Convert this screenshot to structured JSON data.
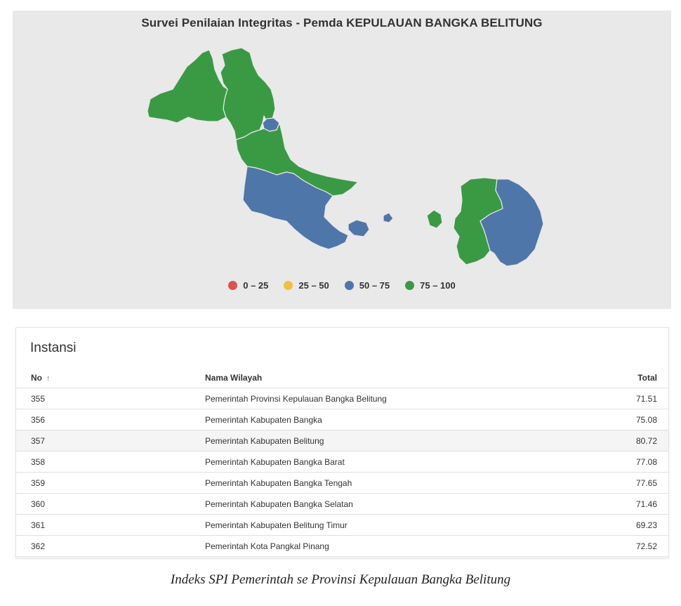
{
  "map": {
    "title": "Survei Penilaian Integritas - Pemda KEPULAUAN BANGKA BELITUNG",
    "colors": {
      "r0_25": "#d9534f",
      "r25_50": "#f0c040",
      "r50_75": "#4f76a8",
      "r75_100": "#3a9a44"
    },
    "legend": [
      {
        "label": "0 – 25",
        "color": "#d9534f"
      },
      {
        "label": "25 – 50",
        "color": "#f0c040"
      },
      {
        "label": "50 – 75",
        "color": "#4f76a8"
      },
      {
        "label": "75 – 100",
        "color": "#3a9a44"
      }
    ],
    "regions": [
      {
        "name": "Kabupaten Bangka Barat",
        "score": 77.08,
        "class": "75 – 100"
      },
      {
        "name": "Kabupaten Bangka",
        "score": 75.08,
        "class": "75 – 100"
      },
      {
        "name": "Kota Pangkal Pinang",
        "score": 72.52,
        "class": "50 – 75"
      },
      {
        "name": "Kabupaten Bangka Tengah",
        "score": 77.65,
        "class": "75 – 100"
      },
      {
        "name": "Kabupaten Bangka Selatan",
        "score": 71.46,
        "class": "50 – 75"
      },
      {
        "name": "Kabupaten Belitung",
        "score": 80.72,
        "class": "75 – 100"
      },
      {
        "name": "Kabupaten Belitung Timur",
        "score": 69.23,
        "class": "50 – 75"
      }
    ]
  },
  "table": {
    "heading": "Instansi",
    "columns": {
      "no": "No",
      "name": "Nama Wilayah",
      "total": "Total"
    },
    "sort_icon": "arrow-up-icon",
    "rows": [
      {
        "no": "355",
        "name": "Pemerintah Provinsi Kepulauan Bangka Belitung",
        "total": "71.51"
      },
      {
        "no": "356",
        "name": "Pemerintah Kabupaten Bangka",
        "total": "75.08"
      },
      {
        "no": "357",
        "name": "Pemerintah Kabupaten Belitung",
        "total": "80.72"
      },
      {
        "no": "358",
        "name": "Pemerintah Kabupaten Bangka Barat",
        "total": "77.08"
      },
      {
        "no": "359",
        "name": "Pemerintah Kabupaten Bangka Tengah",
        "total": "77.65"
      },
      {
        "no": "360",
        "name": "Pemerintah Kabupaten Bangka Selatan",
        "total": "71.46"
      },
      {
        "no": "361",
        "name": "Pemerintah Kabupaten Belitung Timur",
        "total": "69.23"
      },
      {
        "no": "362",
        "name": "Pemerintah Kota Pangkal Pinang",
        "total": "72.52"
      }
    ]
  },
  "caption": "Indeks SPI Pemerintah se Provinsi Kepulauan Bangka Belitung"
}
